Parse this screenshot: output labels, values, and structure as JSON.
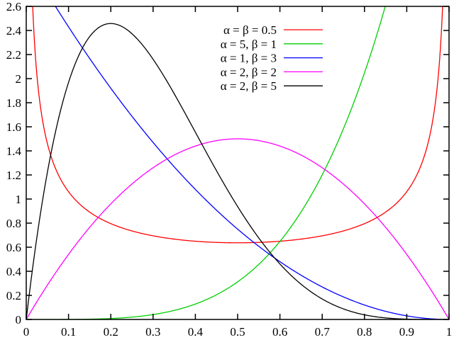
{
  "chart_data": {
    "type": "line",
    "title": "",
    "xlabel": "",
    "ylabel": "",
    "xlim": [
      0,
      1
    ],
    "ylim": [
      0,
      2.6
    ],
    "xticks": [
      "0",
      "0.1",
      "0.2",
      "0.3",
      "0.4",
      "0.5",
      "0.6",
      "0.7",
      "0.8",
      "0.9",
      "1"
    ],
    "yticks": [
      "0",
      "0.2",
      "0.4",
      "0.6",
      "0.8",
      "1",
      "1.2",
      "1.4",
      "1.6",
      "1.8",
      "2",
      "2.2",
      "2.4",
      "2.6"
    ],
    "grid": false,
    "legend_placement": "top-right",
    "series": [
      {
        "name": "α = β = 0.5",
        "alpha": 0.5,
        "beta": 0.5,
        "color": "#ff0000"
      },
      {
        "name": "α = 5, β = 1",
        "alpha": 5,
        "beta": 1,
        "color": "#00d000"
      },
      {
        "name": "α = 1, β = 3",
        "alpha": 1,
        "beta": 3,
        "color": "#0000ff"
      },
      {
        "name": "α = 2, β = 2",
        "alpha": 2,
        "beta": 2,
        "color": "#ff00ff"
      },
      {
        "name": "α = 2, β = 5",
        "alpha": 2,
        "beta": 5,
        "color": "#000000"
      }
    ]
  }
}
